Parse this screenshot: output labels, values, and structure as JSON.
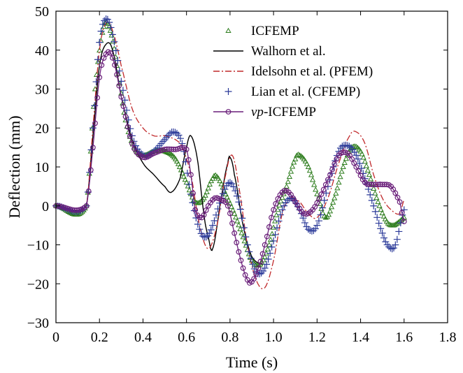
{
  "chart_data": {
    "type": "line",
    "title": "",
    "xlabel": "Time (s)",
    "ylabel": "Deflection (mm)",
    "xlim": [
      0,
      1.8
    ],
    "ylim": [
      -30,
      50
    ],
    "xticks": [
      "0",
      "0.2",
      "0.4",
      "0.6",
      "0.8",
      "1.0",
      "1.2",
      "1.4",
      "1.6",
      "1.8"
    ],
    "yticks": [
      "−30",
      "−20",
      "−10",
      "0",
      "10",
      "20",
      "30",
      "40",
      "50"
    ],
    "legend_position": "top-right",
    "grid": false,
    "series": [
      {
        "name": "ICFEMP",
        "legend_prefix": "",
        "style": "triangle-markers",
        "color": "#2e7d1e",
        "x": [
          0,
          0.14,
          0.18,
          0.22,
          0.25,
          0.28,
          0.32,
          0.36,
          0.4,
          0.45,
          0.5,
          0.55,
          0.6,
          0.64,
          0.68,
          0.72,
          0.74,
          0.78,
          0.82,
          0.86,
          0.9,
          0.94,
          0.98,
          1.02,
          1.06,
          1.1,
          1.12,
          1.16,
          1.2,
          1.24,
          1.28,
          1.32,
          1.36,
          1.4,
          1.44,
          1.48,
          1.52,
          1.55,
          1.58,
          1.6
        ],
        "y": [
          0,
          0,
          30,
          46,
          45,
          36,
          22,
          15,
          13,
          14,
          14,
          12,
          6,
          1,
          2,
          7,
          7.5,
          3,
          -2,
          -8,
          -14,
          -15,
          -10,
          -1,
          5,
          12,
          13,
          10,
          3,
          -3,
          2,
          10,
          15,
          14,
          8,
          1,
          -4,
          -5,
          -4,
          -3
        ]
      },
      {
        "name": "Walhorn et al.",
        "legend_prefix": "",
        "style": "solid",
        "color": "#000000",
        "x": [
          0,
          0.14,
          0.17,
          0.2,
          0.23,
          0.26,
          0.3,
          0.35,
          0.4,
          0.45,
          0.5,
          0.53,
          0.57,
          0.6,
          0.62,
          0.65,
          0.68,
          0.7,
          0.72,
          0.76,
          0.79,
          0.8,
          0.82,
          0.86,
          0.9,
          0.95
        ],
        "y": [
          0,
          0,
          18,
          36,
          41.5,
          40,
          28,
          17,
          11,
          8,
          5,
          3.5,
          7,
          15,
          18,
          12,
          -2,
          -8,
          -11,
          2,
          11,
          12.5,
          8,
          -5,
          -13,
          -15
        ]
      },
      {
        "name": "Idelsohn et al. (PFEM)",
        "legend_prefix": "",
        "style": "dash-dot",
        "color": "#c0282a",
        "x": [
          0,
          0.14,
          0.17,
          0.2,
          0.23,
          0.26,
          0.3,
          0.35,
          0.4,
          0.45,
          0.5,
          0.55,
          0.58,
          0.62,
          0.66,
          0.7,
          0.74,
          0.78,
          0.81,
          0.84,
          0.88,
          0.92,
          0.96,
          1.0,
          1.04,
          1.08,
          1.12,
          1.16,
          1.2,
          1.25,
          1.3,
          1.35,
          1.38,
          1.42,
          1.46,
          1.5,
          1.54,
          1.58,
          1.6
        ],
        "y": [
          0,
          0,
          20,
          40,
          47,
          45,
          36,
          25,
          20,
          18,
          18,
          17,
          15,
          8,
          -5,
          -11,
          -5,
          8,
          13,
          5,
          -10,
          -19,
          -21,
          -14,
          -2,
          2,
          1,
          -2,
          -3,
          2,
          11,
          18,
          19,
          16,
          8,
          2,
          -1,
          -2,
          1.5
        ]
      },
      {
        "name": "Lian et al. (CFEMP)",
        "legend_prefix": "",
        "style": "plus-markers",
        "color": "#2b3a99",
        "x": [
          0,
          0.14,
          0.17,
          0.2,
          0.23,
          0.26,
          0.3,
          0.35,
          0.4,
          0.45,
          0.5,
          0.54,
          0.58,
          0.62,
          0.66,
          0.69,
          0.72,
          0.76,
          0.8,
          0.84,
          0.88,
          0.92,
          0.96,
          1.0,
          1.04,
          1.08,
          1.12,
          1.16,
          1.2,
          1.25,
          1.3,
          1.34,
          1.38,
          1.42,
          1.46,
          1.5,
          1.53,
          1.56,
          1.6
        ],
        "y": [
          0,
          0,
          20,
          42,
          48,
          44,
          32,
          18,
          13,
          14,
          17,
          19,
          16,
          3,
          -6,
          -8,
          -5,
          2,
          6,
          1,
          -10,
          -17,
          -16,
          -9,
          -1,
          2,
          -1,
          -6,
          -5,
          5,
          14,
          15.5,
          13,
          7,
          0,
          -7,
          -10.5,
          -10,
          -1
        ]
      },
      {
        "name": "-ICFEMP",
        "legend_prefix": "vp",
        "style": "circle-markers",
        "color": "#6a1f7a",
        "x": [
          0,
          0.14,
          0.17,
          0.2,
          0.23,
          0.26,
          0.3,
          0.35,
          0.4,
          0.45,
          0.5,
          0.55,
          0.6,
          0.62,
          0.64,
          0.67,
          0.7,
          0.73,
          0.76,
          0.79,
          0.82,
          0.85,
          0.88,
          0.9,
          0.93,
          0.96,
          1.0,
          1.04,
          1.07,
          1.1,
          1.14,
          1.18,
          1.22,
          1.26,
          1.3,
          1.34,
          1.38,
          1.42,
          1.46,
          1.5,
          1.54,
          1.58,
          1.6
        ],
        "y": [
          0,
          0,
          15,
          33,
          39,
          38,
          28,
          16,
          12.5,
          13.5,
          14.5,
          14.5,
          14.5,
          8,
          -1,
          -3,
          0,
          2,
          1.5,
          0,
          -7,
          -14,
          -19,
          -19.5,
          -16,
          -10,
          -1,
          3.5,
          3.5,
          1,
          -2,
          -1,
          3,
          8,
          13,
          13.5,
          10,
          6,
          5.5,
          5.5,
          5,
          1,
          -4
        ]
      }
    ]
  }
}
